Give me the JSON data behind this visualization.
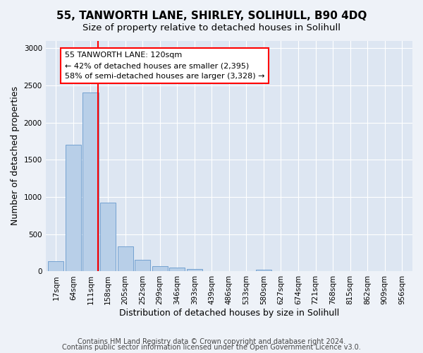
{
  "title": "55, TANWORTH LANE, SHIRLEY, SOLIHULL, B90 4DQ",
  "subtitle": "Size of property relative to detached houses in Solihull",
  "xlabel": "Distribution of detached houses by size in Solihull",
  "ylabel": "Number of detached properties",
  "bar_labels": [
    "17sqm",
    "64sqm",
    "111sqm",
    "158sqm",
    "205sqm",
    "252sqm",
    "299sqm",
    "346sqm",
    "393sqm",
    "439sqm",
    "486sqm",
    "533sqm",
    "580sqm",
    "627sqm",
    "674sqm",
    "721sqm",
    "768sqm",
    "815sqm",
    "862sqm",
    "909sqm",
    "956sqm"
  ],
  "bar_values": [
    140,
    1700,
    2400,
    920,
    340,
    160,
    75,
    50,
    35,
    0,
    0,
    0,
    25,
    0,
    0,
    0,
    0,
    0,
    0,
    0,
    0
  ],
  "bar_color": "#b8cfe8",
  "bar_edge_color": "#6699cc",
  "vline_color": "red",
  "vline_x": 2.42,
  "annotation_text": "55 TANWORTH LANE: 120sqm\n← 42% of detached houses are smaller (2,395)\n58% of semi-detached houses are larger (3,328) →",
  "annotation_box_color": "white",
  "annotation_box_edge_color": "red",
  "ylim": [
    0,
    3100
  ],
  "yticks": [
    0,
    500,
    1000,
    1500,
    2000,
    2500,
    3000
  ],
  "footer_line1": "Contains HM Land Registry data © Crown copyright and database right 2024.",
  "footer_line2": "Contains public sector information licensed under the Open Government Licence v3.0.",
  "background_color": "#eef2f8",
  "plot_bg_color": "#dde6f2",
  "grid_color": "white",
  "title_fontsize": 11,
  "subtitle_fontsize": 9.5,
  "axis_label_fontsize": 9,
  "tick_fontsize": 7.5,
  "footer_fontsize": 7,
  "annot_fontsize": 8
}
